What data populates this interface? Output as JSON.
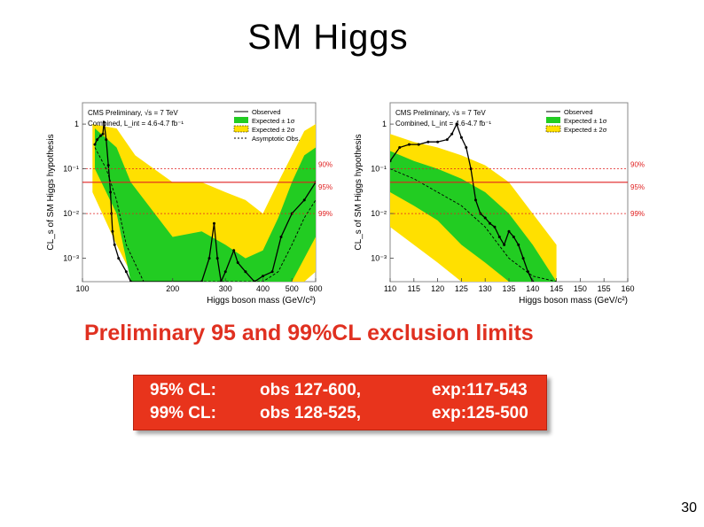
{
  "slide": {
    "title": "SM Higgs",
    "subtitle": "Preliminary 95 and 99%CL exclusion limits",
    "page_number": "30",
    "summary_rows": [
      {
        "cl": "95% CL:",
        "obs": "obs 127-600,",
        "exp": "exp:117-543"
      },
      {
        "cl": "99% CL:",
        "obs": "obs 128-525,",
        "exp": "exp:125-500"
      }
    ]
  },
  "colors": {
    "band_2sigma": "#ffe000",
    "band_1sigma": "#22cc22",
    "observed": "#000000",
    "cl_line": "#e02020",
    "subtitle": "#e03020",
    "summary_bg": "#e8341c"
  },
  "chart_data": [
    {
      "type": "line",
      "title": "",
      "header_lines": [
        "CMS Preliminary, √s = 7 TeV",
        "Combined, L_int = 4.6-4.7 fb⁻¹"
      ],
      "legend": [
        "Observed",
        "Expected ± 1σ",
        "Expected ± 2σ",
        "Asymptotic Obs."
      ],
      "legend_position": "top-right",
      "xlabel": "Higgs boson mass (GeV/c²)",
      "ylabel": "CL_s of SM Higgs hypothesis",
      "x_scale": "log",
      "y_scale": "log",
      "xlim": [
        100,
        600
      ],
      "ylim": [
        0.0003,
        3
      ],
      "xticks": [
        100,
        200,
        300,
        400,
        500,
        600
      ],
      "yticks": [
        1,
        0.1,
        0.01,
        0.001
      ],
      "ytick_labels": [
        "1",
        "10⁻¹",
        "10⁻²",
        "10⁻³"
      ],
      "cl_lines": [
        {
          "label": "90%",
          "y": 0.1
        },
        {
          "label": "95%",
          "y": 0.05
        },
        {
          "label": "99%",
          "y": 0.01
        }
      ],
      "series": [
        {
          "name": "Observed",
          "x": [
            110,
            112,
            115,
            117,
            118,
            120,
            122,
            124,
            125,
            126,
            128,
            132,
            140,
            145,
            250,
            265,
            275,
            282,
            290,
            300,
            320,
            330,
            350,
            375,
            400,
            430,
            460,
            500,
            550,
            600
          ],
          "y": [
            0.35,
            0.45,
            0.55,
            0.6,
            1.1,
            0.45,
            0.12,
            0.03,
            0.01,
            0.004,
            0.002,
            0.001,
            0.0005,
            0.0003,
            0.0003,
            0.001,
            0.006,
            0.001,
            0.0003,
            0.0005,
            0.0015,
            0.0008,
            0.0005,
            0.0003,
            0.0004,
            0.0005,
            0.003,
            0.01,
            0.02,
            0.05
          ]
        },
        {
          "name": "Expected median",
          "x": [
            110,
            120,
            130,
            140,
            160,
            200,
            250,
            300,
            350,
            400,
            450,
            500,
            550,
            600
          ],
          "y": [
            0.3,
            0.1,
            0.02,
            0.002,
            0.0003,
            0.0003,
            0.0003,
            0.0003,
            0.0003,
            0.0003,
            0.0005,
            0.002,
            0.008,
            0.02
          ]
        }
      ],
      "band_1sigma": {
        "x": [
          110,
          130,
          145,
          200,
          250,
          300,
          350,
          400,
          450,
          500,
          550,
          600
        ],
        "upper": [
          0.8,
          0.3,
          0.05,
          0.003,
          0.004,
          0.002,
          0.001,
          0.0015,
          0.008,
          0.05,
          0.2,
          0.3
        ],
        "lower": [
          0.1,
          0.01,
          0.0003,
          0.0003,
          0.0003,
          0.0003,
          0.0003,
          0.0003,
          0.0003,
          0.0003,
          0.001,
          0.003
        ]
      },
      "band_2sigma": {
        "x": [
          108,
          130,
          150,
          200,
          250,
          300,
          350,
          400,
          450,
          500,
          550,
          600
        ],
        "upper": [
          1.0,
          0.8,
          0.2,
          0.05,
          0.05,
          0.03,
          0.02,
          0.01,
          0.05,
          0.2,
          0.7,
          1.0
        ],
        "lower": [
          0.03,
          0.002,
          0.0003,
          0.0003,
          0.0003,
          0.0003,
          0.0003,
          0.0003,
          0.0003,
          0.0003,
          0.0003,
          0.0005
        ]
      }
    },
    {
      "type": "line",
      "title": "",
      "header_lines": [
        "CMS Preliminary, √s = 7 TeV",
        "Combined, L_int = 4.6-4.7 fb⁻¹"
      ],
      "legend": [
        "Observed",
        "Expected ± 1σ",
        "Expected ± 2σ"
      ],
      "legend_position": "top-right",
      "xlabel": "Higgs boson mass (GeV/c²)",
      "ylabel": "CL_s of SM Higgs hypothesis",
      "x_scale": "linear",
      "y_scale": "log",
      "xlim": [
        110,
        160
      ],
      "ylim": [
        0.0003,
        3
      ],
      "xticks": [
        110,
        115,
        120,
        125,
        130,
        135,
        140,
        145,
        150,
        155,
        160
      ],
      "yticks": [
        1,
        0.1,
        0.01,
        0.001
      ],
      "ytick_labels": [
        "1",
        "10⁻¹",
        "10⁻²",
        "10⁻³"
      ],
      "cl_lines": [
        {
          "label": "90%",
          "y": 0.1
        },
        {
          "label": "95%",
          "y": 0.05
        },
        {
          "label": "99%",
          "y": 0.01
        }
      ],
      "series": [
        {
          "name": "Observed",
          "x": [
            110,
            112,
            114,
            116,
            118,
            120,
            122,
            123,
            124,
            125,
            126,
            127,
            128,
            129,
            130,
            131,
            132,
            133,
            134,
            135,
            136,
            137,
            138,
            139,
            140
          ],
          "y": [
            0.15,
            0.3,
            0.35,
            0.35,
            0.4,
            0.4,
            0.45,
            0.6,
            1.0,
            0.5,
            0.3,
            0.1,
            0.02,
            0.01,
            0.008,
            0.006,
            0.005,
            0.003,
            0.002,
            0.004,
            0.003,
            0.002,
            0.001,
            0.0005,
            0.0003
          ]
        },
        {
          "name": "Expected median",
          "x": [
            110,
            115,
            120,
            125,
            130,
            135,
            140,
            145
          ],
          "y": [
            0.1,
            0.06,
            0.03,
            0.015,
            0.005,
            0.001,
            0.0004,
            0.0003
          ]
        }
      ],
      "band_1sigma": {
        "x": [
          110,
          115,
          120,
          125,
          130,
          135,
          140,
          145
        ],
        "upper": [
          0.25,
          0.15,
          0.1,
          0.06,
          0.03,
          0.01,
          0.002,
          0.0003
        ],
        "lower": [
          0.03,
          0.015,
          0.007,
          0.002,
          0.0008,
          0.0003,
          0.0003,
          0.0003
        ]
      },
      "band_2sigma": {
        "x": [
          110,
          115,
          120,
          125,
          130,
          135,
          140,
          145
        ],
        "upper": [
          0.6,
          0.4,
          0.3,
          0.2,
          0.12,
          0.05,
          0.01,
          0.002
        ],
        "lower": [
          0.005,
          0.002,
          0.0008,
          0.0003,
          0.0003,
          0.0003,
          0.0003,
          0.0003
        ]
      }
    }
  ]
}
